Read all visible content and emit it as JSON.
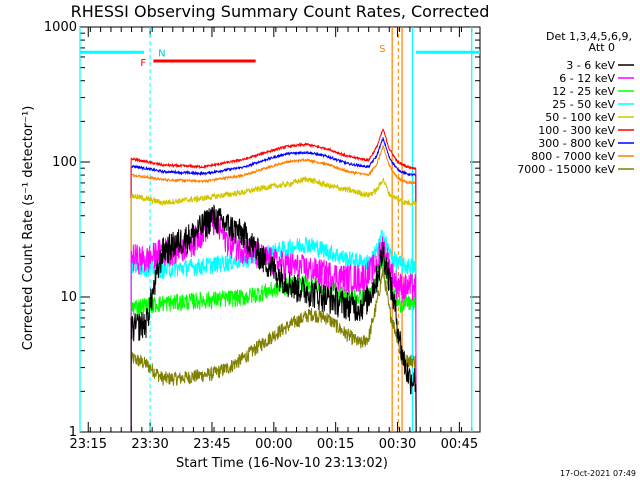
{
  "chart_data": {
    "type": "line",
    "title": "RHESSI Observing Summary Count Rates, Corrected",
    "xlabel": "Start Time (16-Nov-10 23:13:02)",
    "ylabel": "Corrected Count Rate (s⁻¹ detector⁻¹)",
    "y_scale": "log",
    "ylim": [
      1,
      1000
    ],
    "xlim_minutes": [
      0,
      97
    ],
    "x_ticks": [
      {
        "minute": 2,
        "label": "23:15"
      },
      {
        "minute": 17,
        "label": "23:30"
      },
      {
        "minute": 32,
        "label": "23:45"
      },
      {
        "minute": 47,
        "label": "00:00"
      },
      {
        "minute": 62,
        "label": "00:15"
      },
      {
        "minute": 77,
        "label": "00:30"
      },
      {
        "minute": 92,
        "label": "00:45"
      }
    ],
    "y_ticks": [
      {
        "value": 1,
        "label": "1"
      },
      {
        "value": 10,
        "label": "10"
      },
      {
        "value": 100,
        "label": "100"
      },
      {
        "value": 1000,
        "label": "1000"
      }
    ],
    "legend": {
      "header": "Det 1,3,4,5,6,9,",
      "subheader": "Att 0",
      "placement": "right"
    },
    "series": [
      {
        "name": "3 - 6 keV",
        "color": "#000000",
        "noise": 0.25,
        "x": [
          13,
          16,
          20,
          24,
          28,
          32,
          36,
          40,
          44,
          48,
          52,
          56,
          60,
          64,
          68,
          70,
          72,
          73.5,
          75,
          76.5,
          78,
          79,
          80,
          81
        ],
        "values": [
          6,
          6.5,
          22,
          26,
          30,
          40,
          34,
          29,
          20,
          15,
          12,
          11,
          10,
          9,
          8.5,
          10,
          14,
          22,
          14,
          8,
          4,
          3,
          2.5,
          2.5
        ]
      },
      {
        "name": "6 - 12 keV",
        "color": "#ff00ff",
        "noise": 0.25,
        "x": [
          13,
          16,
          20,
          24,
          28,
          32,
          36,
          40,
          44,
          48,
          52,
          56,
          60,
          64,
          68,
          70,
          72,
          73.5,
          75,
          76.5,
          78,
          81
        ],
        "values": [
          20,
          19,
          22,
          23,
          27,
          38,
          26,
          23,
          20,
          18,
          17,
          16,
          15,
          14,
          14,
          15,
          18,
          25,
          17,
          13,
          12,
          12
        ]
      },
      {
        "name": "12 - 25 keV",
        "color": "#00ff00",
        "noise": 0.15,
        "x": [
          13,
          20,
          30,
          40,
          45,
          50,
          55,
          60,
          65,
          70,
          72,
          73.5,
          75,
          77,
          79,
          81
        ],
        "values": [
          8.5,
          9,
          9.5,
          10,
          11,
          12,
          13,
          12,
          10,
          10,
          13,
          20,
          12,
          9,
          9,
          9
        ]
      },
      {
        "name": "25 - 50 keV",
        "color": "#00ffff",
        "noise": 0.15,
        "x": [
          13,
          20,
          30,
          40,
          45,
          50,
          55,
          60,
          65,
          70,
          72,
          73.5,
          75,
          77,
          79,
          81
        ],
        "values": [
          17,
          16,
          17,
          19,
          21,
          23,
          25,
          22,
          19,
          18,
          22,
          30,
          21,
          18,
          17,
          17
        ]
      },
      {
        "name": "50 - 100 keV",
        "color": "#d2c600",
        "noise": 0.05,
        "x": [
          13,
          20,
          30,
          40,
          45,
          50,
          55,
          60,
          65,
          70,
          72,
          73.5,
          75,
          77,
          79,
          81
        ],
        "values": [
          56,
          50,
          54,
          60,
          65,
          68,
          75,
          67,
          62,
          57,
          62,
          75,
          58,
          53,
          50,
          50
        ]
      },
      {
        "name": "100 - 300 keV",
        "color": "#ff0000",
        "noise": 0.02,
        "x": [
          13,
          20,
          30,
          40,
          45,
          50,
          55,
          60,
          65,
          70,
          72,
          73.5,
          75,
          77,
          79,
          81
        ],
        "values": [
          105,
          95,
          92,
          105,
          118,
          130,
          135,
          125,
          110,
          103,
          130,
          175,
          125,
          100,
          93,
          90
        ]
      },
      {
        "name": "300 - 800 keV",
        "color": "#0000ff",
        "noise": 0.02,
        "x": [
          13,
          20,
          30,
          40,
          45,
          50,
          55,
          60,
          65,
          70,
          72,
          73.5,
          75,
          77,
          79,
          81
        ],
        "values": [
          93,
          85,
          82,
          92,
          104,
          115,
          118,
          110,
          97,
          92,
          112,
          150,
          108,
          88,
          82,
          80
        ]
      },
      {
        "name": "800 - 7000 keV",
        "color": "#ff8000",
        "noise": 0.02,
        "x": [
          13,
          20,
          30,
          40,
          45,
          50,
          55,
          60,
          65,
          70,
          72,
          73.5,
          75,
          77,
          79,
          81
        ],
        "values": [
          80,
          74,
          72,
          80,
          90,
          100,
          104,
          96,
          85,
          80,
          97,
          130,
          94,
          76,
          71,
          70
        ]
      },
      {
        "name": "7000 - 15000 keV",
        "color": "#7f7f00",
        "noise": 0.12,
        "x": [
          13,
          16,
          20,
          24,
          28,
          32,
          36,
          40,
          44,
          48,
          52,
          56,
          60,
          64,
          68,
          70,
          72,
          73.5,
          75,
          77,
          78,
          81
        ],
        "values": [
          3.5,
          3.2,
          2.5,
          2.5,
          2.6,
          2.7,
          3.0,
          3.6,
          4.5,
          5.5,
          6.5,
          7.5,
          7.0,
          5.5,
          4.5,
          5,
          9,
          16,
          8,
          5,
          3.4,
          3.4
        ]
      }
    ],
    "overlays": {
      "night_level": 650,
      "night_intervals": [
        [
          0,
          15.5
        ],
        [
          81.5,
          97
        ]
      ],
      "night_label_n": "N",
      "night_dashed_minute": 17,
      "night_edges": [
        0,
        80.6,
        95
      ],
      "flare_label": "F",
      "flare_interval": [
        17.8,
        42.6
      ],
      "flare_level": 560,
      "saa_label": "S",
      "saa_interval": [
        75.7,
        78.1
      ],
      "saa_dashed_minute": 77.2,
      "data_start_minute": 12.4,
      "data_end_minute": 81.5
    }
  },
  "timestamp": "17-Oct-2021 07:49"
}
